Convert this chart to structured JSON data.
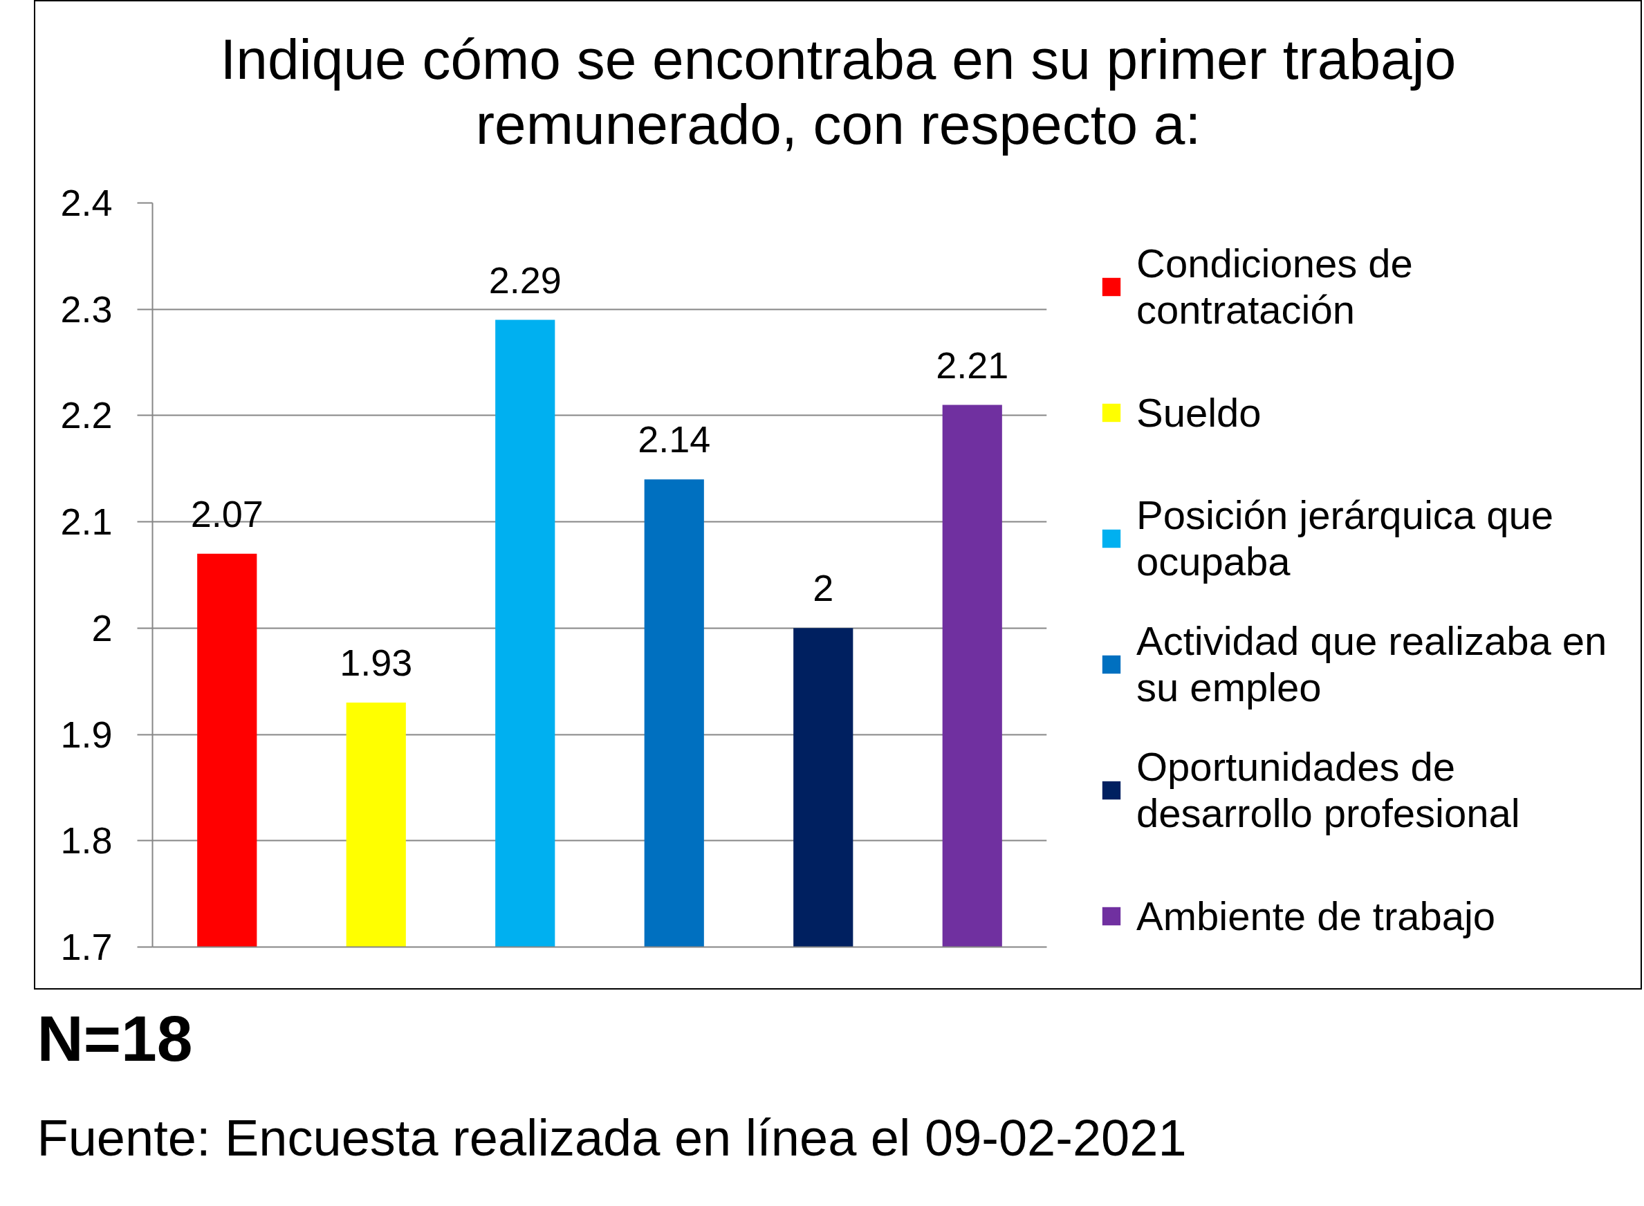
{
  "chart_data": {
    "type": "bar",
    "title": "Indique cómo se encontraba en su primer trabajo remunerado, con respecto a:",
    "categories": [
      null
    ],
    "series": [
      {
        "name": "Condiciones de contratación",
        "color": "#ff0000",
        "values": [
          2.07
        ]
      },
      {
        "name": "Sueldo",
        "color": "#ffff00",
        "values": [
          1.93
        ]
      },
      {
        "name": "Posición jerárquica que ocupaba",
        "color": "#00b0f0",
        "values": [
          2.29
        ]
      },
      {
        "name": "Actividad que realizaba en su empleo",
        "color": "#0070c0",
        "values": [
          2.14
        ]
      },
      {
        "name": "Oportunidades de desarrollo profesional",
        "color": "#002060",
        "values": [
          2
        ]
      },
      {
        "name": "Ambiente de trabajo",
        "color": "#7030a0",
        "values": [
          2.21
        ]
      }
    ],
    "ylim": [
      1.7,
      2.4
    ],
    "yticks": [
      1.7,
      1.8,
      1.9,
      2,
      2.1,
      2.2,
      2.3,
      2.4
    ],
    "grid": "y",
    "legend": "right",
    "data_labels": true,
    "annotations": [
      "N=18",
      "Fuente: Encuesta realizada en línea el 09-02-2021"
    ]
  }
}
